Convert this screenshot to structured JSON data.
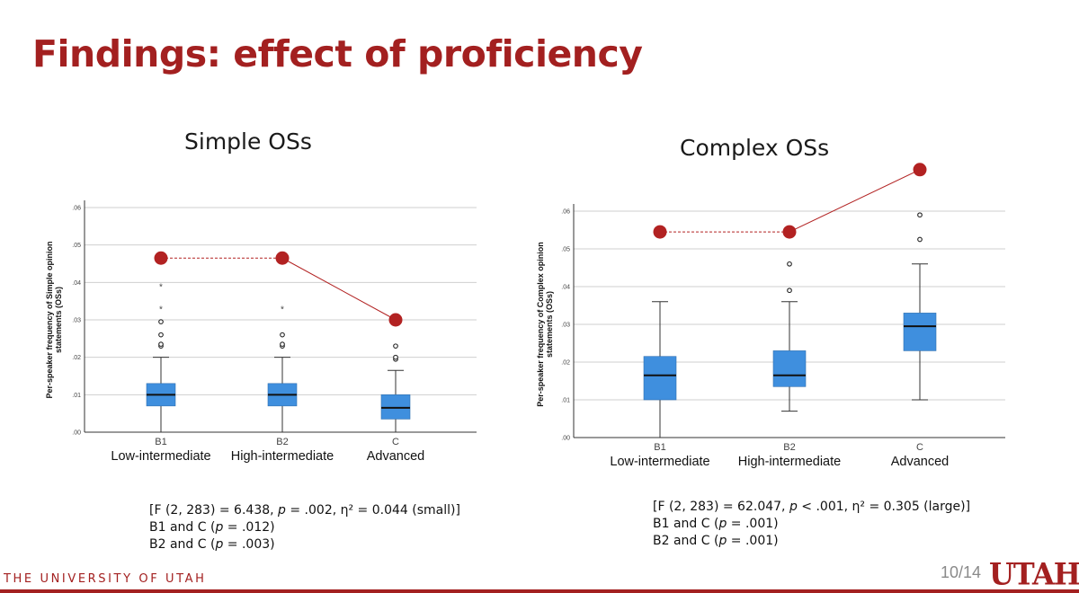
{
  "slide": {
    "title": "Findings: effect of proficiency",
    "footer_text": "THE UNIVERSITY OF UTAH",
    "page_number": "10/14",
    "logo_text": "UTAH"
  },
  "colors": {
    "accent": "#a32020",
    "box": "#3f8fde",
    "median": "#111111",
    "trend": "#b22222"
  },
  "chart_data": [
    {
      "type": "boxplot",
      "title": "Simple OSs",
      "ylabel": "Per-speaker frequency of Simple opinion statements (OSs)",
      "ylim": [
        0,
        0.06
      ],
      "yticks": [
        0,
        0.01,
        0.02,
        0.03,
        0.04,
        0.05,
        0.06
      ],
      "ytick_labels": [
        ".00",
        ".01",
        ".02",
        ".03",
        ".04",
        ".05",
        ".06"
      ],
      "categories": [
        "B1",
        "B2",
        "C"
      ],
      "group_labels": [
        "Low-intermediate",
        "High-intermediate",
        "Advanced"
      ],
      "boxes": [
        {
          "whisker_low": 0.0,
          "q1": 0.007,
          "median": 0.01,
          "q3": 0.013,
          "whisker_high": 0.02,
          "outliers": [
            0.023,
            0.0235,
            0.026,
            0.0295
          ],
          "extremes": [
            0.033,
            0.039
          ]
        },
        {
          "whisker_low": 0.0,
          "q1": 0.007,
          "median": 0.01,
          "q3": 0.013,
          "whisker_high": 0.02,
          "outliers": [
            0.023,
            0.0235,
            0.026
          ],
          "extremes": [
            0.033
          ]
        },
        {
          "whisker_low": 0.0,
          "q1": 0.0035,
          "median": 0.0065,
          "q3": 0.01,
          "whisker_high": 0.0165,
          "outliers": [
            0.0195,
            0.02,
            0.023
          ],
          "extremes": []
        }
      ],
      "trend_points": [
        0.0465,
        0.0465,
        0.03
      ],
      "trend_styles": [
        "dashed",
        "solid"
      ],
      "stats": [
        "[F (2, 283) = 6.438, p = .002, η² = 0.044 (small)]",
        "B1 and C (p = .012)",
        "B2 and C (p = .003)"
      ]
    },
    {
      "type": "boxplot",
      "title": "Complex OSs",
      "ylabel": "Per-speaker frequency of Complex opinion statements (OSs)",
      "ylim": [
        0,
        0.06
      ],
      "yticks": [
        0,
        0.01,
        0.02,
        0.03,
        0.04,
        0.05,
        0.06
      ],
      "ytick_labels": [
        ".00",
        ".01",
        ".02",
        ".03",
        ".04",
        ".05",
        ".06"
      ],
      "categories": [
        "B1",
        "B2",
        "C"
      ],
      "group_labels": [
        "Low-intermediate",
        "High-intermediate",
        "Advanced"
      ],
      "boxes": [
        {
          "whisker_low": 0.0,
          "q1": 0.01,
          "median": 0.0165,
          "q3": 0.0215,
          "whisker_high": 0.036,
          "outliers": [],
          "extremes": []
        },
        {
          "whisker_low": 0.007,
          "q1": 0.0135,
          "median": 0.0165,
          "q3": 0.023,
          "whisker_high": 0.036,
          "outliers": [
            0.039,
            0.046
          ],
          "extremes": []
        },
        {
          "whisker_low": 0.01,
          "q1": 0.023,
          "median": 0.0295,
          "q3": 0.033,
          "whisker_high": 0.046,
          "outliers": [
            0.0525,
            0.059
          ],
          "extremes": []
        }
      ],
      "trend_points": [
        0.0545,
        0.0545,
        0.071
      ],
      "trend_styles": [
        "dashed",
        "solid"
      ],
      "stats": [
        "[F (2, 283) = 62.047, p < .001, η² = 0.305 (large)]",
        "B1 and C (p = .001)",
        "B2 and C (p = .001)"
      ]
    }
  ]
}
